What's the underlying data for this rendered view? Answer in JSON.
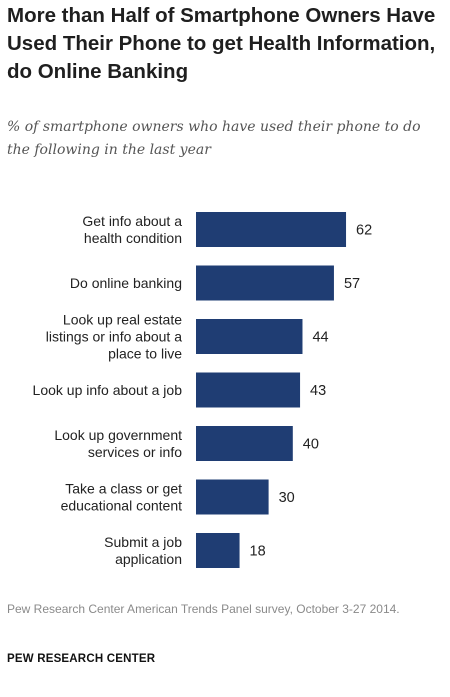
{
  "title": "More than Half of Smartphone Owners Have Used Their Phone to get Health Information, do Online Banking",
  "subtitle": "% of smartphone owners who have used their phone to do the following in the last year",
  "source": "Pew Research Center American Trends Panel survey, October 3-27 2014.",
  "organization": "PEW RESEARCH CENTER",
  "colors": {
    "bar": "#1f3d73"
  },
  "chart_data": {
    "type": "bar",
    "orientation": "horizontal",
    "categories": [
      [
        "Get info about a",
        "health condition"
      ],
      [
        "Do online banking"
      ],
      [
        "Look up real estate",
        "listings or info about a",
        "place to live"
      ],
      [
        "Look up info about a job"
      ],
      [
        "Look up government",
        "services or info"
      ],
      [
        "Take a class or get",
        "educational content"
      ],
      [
        "Submit a job",
        "application"
      ]
    ],
    "values": [
      62,
      57,
      44,
      43,
      40,
      30,
      18
    ],
    "xlim": [
      0,
      100
    ],
    "grid": false,
    "legend": "none"
  }
}
